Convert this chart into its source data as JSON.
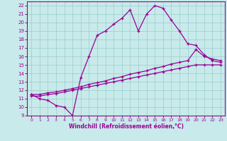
{
  "xlabel": "Windchill (Refroidissement éolien,°C)",
  "xlim": [
    -0.5,
    23.5
  ],
  "ylim": [
    9,
    22.5
  ],
  "xticks": [
    0,
    1,
    2,
    3,
    4,
    5,
    6,
    7,
    8,
    9,
    10,
    11,
    12,
    13,
    14,
    15,
    16,
    17,
    18,
    19,
    20,
    21,
    22,
    23
  ],
  "yticks": [
    9,
    10,
    11,
    12,
    13,
    14,
    15,
    16,
    17,
    18,
    19,
    20,
    21,
    22
  ],
  "bg_color": "#c8eaea",
  "line_color": "#990099",
  "grid_color": "#99cccc",
  "line1_x": [
    0,
    1,
    2,
    3,
    4,
    5,
    6,
    7,
    8,
    9,
    10,
    11,
    12,
    13,
    14,
    15,
    16,
    17,
    18,
    19,
    20,
    21,
    22,
    23
  ],
  "line1_y": [
    11.5,
    11.0,
    10.8,
    10.2,
    10.0,
    9.0,
    13.5,
    16.0,
    18.5,
    19.0,
    19.8,
    20.5,
    21.5,
    19.0,
    21.0,
    22.0,
    21.7,
    20.3,
    19.0,
    17.5,
    17.3,
    16.2,
    15.5,
    15.3
  ],
  "line2_x": [
    0,
    1,
    2,
    3,
    4,
    5,
    6,
    7,
    8,
    9,
    10,
    11,
    12,
    13,
    14,
    15,
    16,
    17,
    18,
    19,
    20,
    21,
    22,
    23
  ],
  "line2_y": [
    11.5,
    11.5,
    11.7,
    11.8,
    12.0,
    12.2,
    12.4,
    12.7,
    12.9,
    13.1,
    13.4,
    13.6,
    13.9,
    14.1,
    14.3,
    14.6,
    14.8,
    15.1,
    15.3,
    15.5,
    16.8,
    16.0,
    15.7,
    15.5
  ],
  "line3_x": [
    0,
    1,
    2,
    3,
    4,
    5,
    6,
    7,
    8,
    9,
    10,
    11,
    12,
    13,
    14,
    15,
    16,
    17,
    18,
    19,
    20,
    21,
    22,
    23
  ],
  "line3_y": [
    11.3,
    11.3,
    11.5,
    11.6,
    11.8,
    12.0,
    12.2,
    12.4,
    12.6,
    12.8,
    13.0,
    13.2,
    13.4,
    13.6,
    13.8,
    14.0,
    14.2,
    14.4,
    14.6,
    14.8,
    15.0,
    15.0,
    15.0,
    15.0
  ]
}
